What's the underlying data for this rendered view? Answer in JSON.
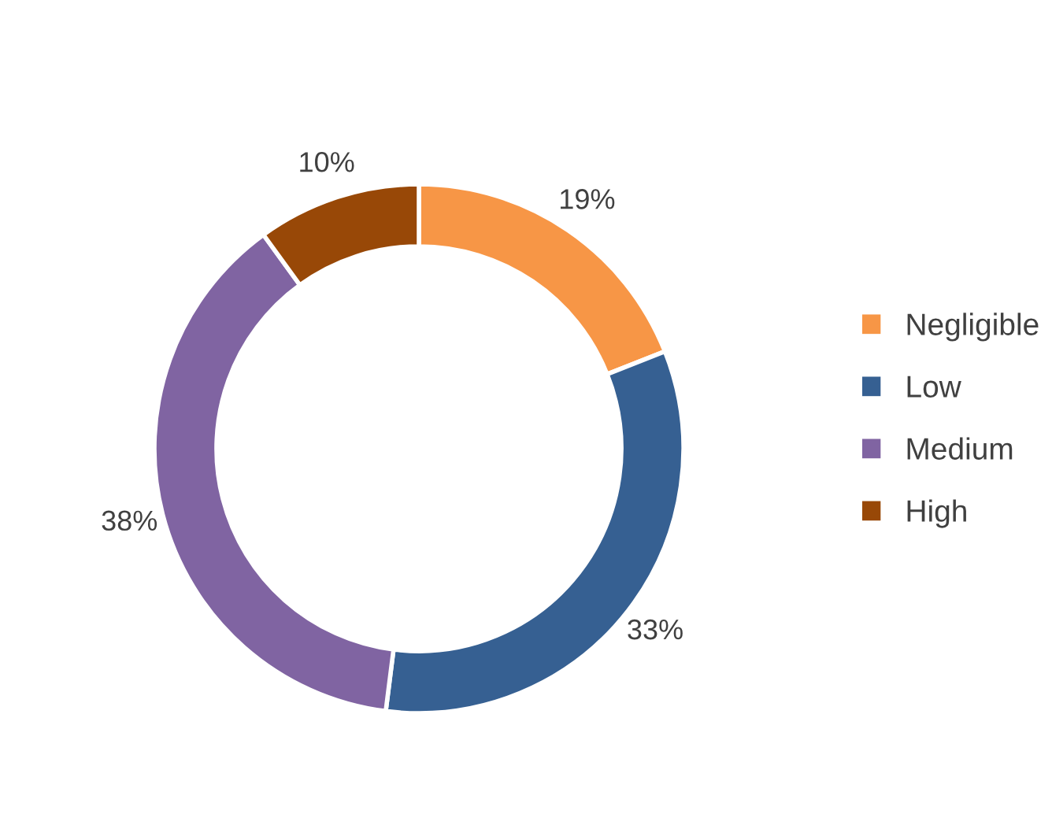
{
  "chart_data": {
    "type": "donut",
    "categories": [
      "Negligible",
      "Low",
      "Medium",
      "High"
    ],
    "values": [
      19,
      33,
      38,
      10
    ],
    "colors": [
      "#f79646",
      "#366092",
      "#8064a2",
      "#984807"
    ],
    "value_labels": [
      "19%",
      "33%",
      "38%",
      "10%"
    ],
    "legend": "right"
  }
}
